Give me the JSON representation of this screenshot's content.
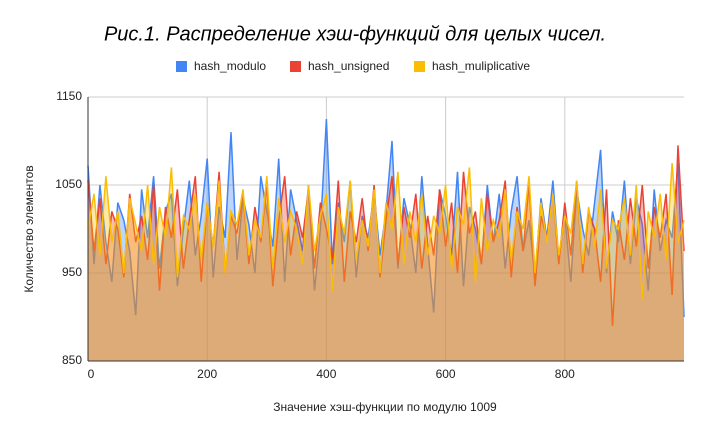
{
  "chart_data": {
    "type": "line",
    "title": "Рис.1. Распределение хэш-функций для целых чисел.",
    "x_label": "Значение хэш-функции по модулю 1009",
    "y_label": "Количество элементов",
    "x": [
      0,
      10,
      20,
      30,
      40,
      50,
      60,
      70,
      80,
      90,
      100,
      110,
      120,
      130,
      140,
      150,
      160,
      170,
      180,
      190,
      200,
      210,
      220,
      230,
      240,
      250,
      260,
      270,
      280,
      290,
      300,
      310,
      320,
      330,
      340,
      350,
      360,
      370,
      380,
      390,
      400,
      410,
      420,
      430,
      440,
      450,
      460,
      470,
      480,
      490,
      500,
      510,
      520,
      530,
      540,
      550,
      560,
      570,
      580,
      590,
      600,
      610,
      620,
      630,
      640,
      650,
      660,
      670,
      680,
      690,
      700,
      710,
      720,
      730,
      740,
      750,
      760,
      770,
      780,
      790,
      800,
      810,
      820,
      830,
      840,
      850,
      860,
      870,
      880,
      890,
      900,
      910,
      920,
      930,
      940,
      950,
      960,
      970,
      980,
      990,
      1000
    ],
    "series": [
      {
        "name": "hash_modulo",
        "color": "#4285f4",
        "values": [
          1072,
          960,
          1050,
          985,
          940,
          1030,
          1010,
          975,
          902,
          1045,
          990,
          1060,
          955,
          1020,
          1040,
          935,
          1000,
          1055,
          970,
          1015,
          1080,
          945,
          1025,
          990,
          1110,
          965,
          1035,
          1005,
          950,
          1060,
          1020,
          980,
          1080,
          940,
          1045,
          1010,
          975,
          1050,
          930,
          1000,
          1125,
          960,
          1030,
          985,
          1055,
          945,
          1015,
          990,
          1040,
          970,
          1020,
          1100,
          955,
          1035,
          1005,
          950,
          1060,
          980,
          905,
          1045,
          1015,
          970,
          1065,
          935,
          1025,
          1000,
          960,
          1050,
          985,
          1040,
          955,
          1020,
          1060,
          975,
          1010,
          945,
          1035,
          990,
          1055,
          965,
          1015,
          940,
          1045,
          1000,
          970,
          1030,
          1090,
          950,
          1020,
          985,
          1055,
          960,
          1035,
          1005,
          930,
          1045,
          975,
          1010,
          990,
          1075,
          900
        ]
      },
      {
        "name": "hash_unsigned",
        "color": "#ea4335",
        "values": [
          1055,
          975,
          1035,
          960,
          1020,
          1000,
          945,
          1040,
          985,
          1015,
          965,
          1050,
          930,
          1025,
          990,
          1045,
          955,
          1010,
          1060,
          940,
          1030,
          980,
          1065,
          950,
          1015,
          995,
          1040,
          960,
          1025,
          985,
          1050,
          935,
          1010,
          1060,
          970,
          1020,
          990,
          1045,
          955,
          1030,
          1000,
          965,
          1055,
          940,
          1020,
          985,
          1035,
          975,
          1050,
          945,
          1010,
          1060,
          960,
          1025,
          990,
          1040,
          955,
          1015,
          970,
          1045,
          980,
          1030,
          950,
          1065,
          995,
          1020,
          960,
          1040,
          985,
          1010,
          1055,
          945,
          1025,
          975,
          1050,
          935,
          1015,
          990,
          1040,
          960,
          1030,
          970,
          1055,
          950,
          1020,
          1000,
          940,
          1045,
          890,
          1010,
          965,
          1035,
          980,
          1050,
          955,
          1025,
          990,
          1040,
          925,
          1095,
          975
        ]
      },
      {
        "name": "hash_muliplicative",
        "color": "#fbbc04",
        "values": [
          1000,
          1040,
          970,
          1060,
          985,
          1020,
          950,
          1035,
          1005,
          975,
          1050,
          960,
          1025,
          990,
          1070,
          945,
          1015,
          1000,
          1040,
          965,
          1030,
          980,
          1055,
          950,
          1020,
          1005,
          1045,
          970,
          1010,
          990,
          1060,
          955,
          1035,
          985,
          1020,
          1000,
          960,
          1050,
          975,
          1015,
          1040,
          930,
          1025,
          995,
          1055,
          965,
          1010,
          980,
          1045,
          950,
          1030,
          1000,
          1065,
          960,
          1020,
          985,
          1040,
          970,
          1015,
          995,
          1050,
          955,
          1025,
          1005,
          1070,
          940,
          1035,
          975,
          1010,
          990,
          1045,
          965,
          1020,
          1000,
          1060,
          950,
          1030,
          985,
          1040,
          970,
          1015,
          995,
          1055,
          960,
          1025,
          980,
          1045,
          955,
          1010,
          1000,
          1035,
          970,
          1050,
          920,
          1020,
          990,
          1040,
          965,
          1075,
          985,
          1010
        ]
      }
    ],
    "xlim": [
      0,
      1000
    ],
    "xticks": [
      0,
      200,
      400,
      600,
      800
    ],
    "ylim": [
      850,
      1150
    ],
    "yticks": [
      850,
      950,
      1050,
      1150
    ],
    "grid": true,
    "legend": "top"
  }
}
